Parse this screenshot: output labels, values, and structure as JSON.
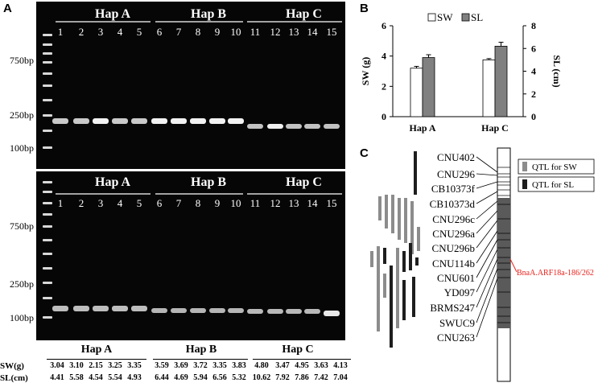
{
  "panel_a": {
    "letter": "A",
    "ladder_labels": [
      "750bp",
      "250bp",
      "100bp"
    ],
    "gel1": {
      "groups": [
        "Hap A",
        "Hap B",
        "Hap C"
      ],
      "lanes": [
        "1",
        "2",
        "3",
        "4",
        "5",
        "6",
        "7",
        "8",
        "9",
        "10",
        "11",
        "12",
        "13",
        "14",
        "15"
      ]
    },
    "gel2": {
      "groups": [
        "Hap A",
        "Hap B",
        "Hap C"
      ],
      "lanes": [
        "1",
        "2",
        "3",
        "4",
        "5",
        "6",
        "7",
        "8",
        "9",
        "10",
        "11",
        "12",
        "13",
        "14",
        "15"
      ]
    },
    "table": {
      "groups": [
        "Hap A",
        "Hap B",
        "Hap C"
      ],
      "rows": [
        {
          "label": "SW(g)",
          "values": [
            "3.04",
            "3.10",
            "2.15",
            "3.25",
            "3.35",
            "3.59",
            "3.69",
            "3.72",
            "3.35",
            "3.83",
            "4.80",
            "3.47",
            "4.95",
            "3.63",
            "4.13"
          ]
        },
        {
          "label": "SL(cm)",
          "values": [
            "4.41",
            "5.58",
            "4.54",
            "5.54",
            "4.93",
            "6.44",
            "4.69",
            "5.94",
            "6.56",
            "5.32",
            "10.62",
            "7.92",
            "7.86",
            "7.42",
            "7.04"
          ]
        }
      ]
    }
  },
  "panel_b": {
    "letter": "B",
    "chart_data": {
      "type": "bar",
      "categories": [
        "Hap A",
        "Hap C"
      ],
      "series": [
        {
          "name": "SW",
          "axis": "left",
          "color": "#ffffff",
          "values": [
            3.2,
            3.75
          ],
          "errors": [
            0.12,
            0.08
          ]
        },
        {
          "name": "SL",
          "axis": "right",
          "color": "#808080",
          "values": [
            5.2,
            6.2
          ],
          "errors": [
            0.25,
            0.35
          ]
        }
      ],
      "ylabel_left": "SW (g)",
      "ylabel_right": "SL (cm)",
      "ylim_left": [
        0,
        6
      ],
      "ylim_right": [
        0,
        8
      ],
      "yticks_left": [
        "0",
        "2",
        "4",
        "6"
      ],
      "yticks_right": [
        "0",
        "2",
        "4",
        "6",
        "8"
      ],
      "legend_position": "top"
    }
  },
  "panel_c": {
    "letter": "C",
    "markers": [
      "CNU402",
      "CNU296",
      "CB10373f",
      "CB10373d",
      "CNU296c",
      "CNU296a",
      "CNU296b",
      "CNU114b",
      "CNU601",
      "YD097",
      "BRMS247",
      "SWUC9",
      "CNU263"
    ],
    "gene_label": "BnaA.ARF18a-186/262",
    "gene_label_color": "#e8221c",
    "legend": [
      {
        "label": "QTL for SW",
        "color": "#8c8c8c"
      },
      {
        "label": "QTL for SL",
        "color": "#1e1e1e"
      }
    ]
  }
}
